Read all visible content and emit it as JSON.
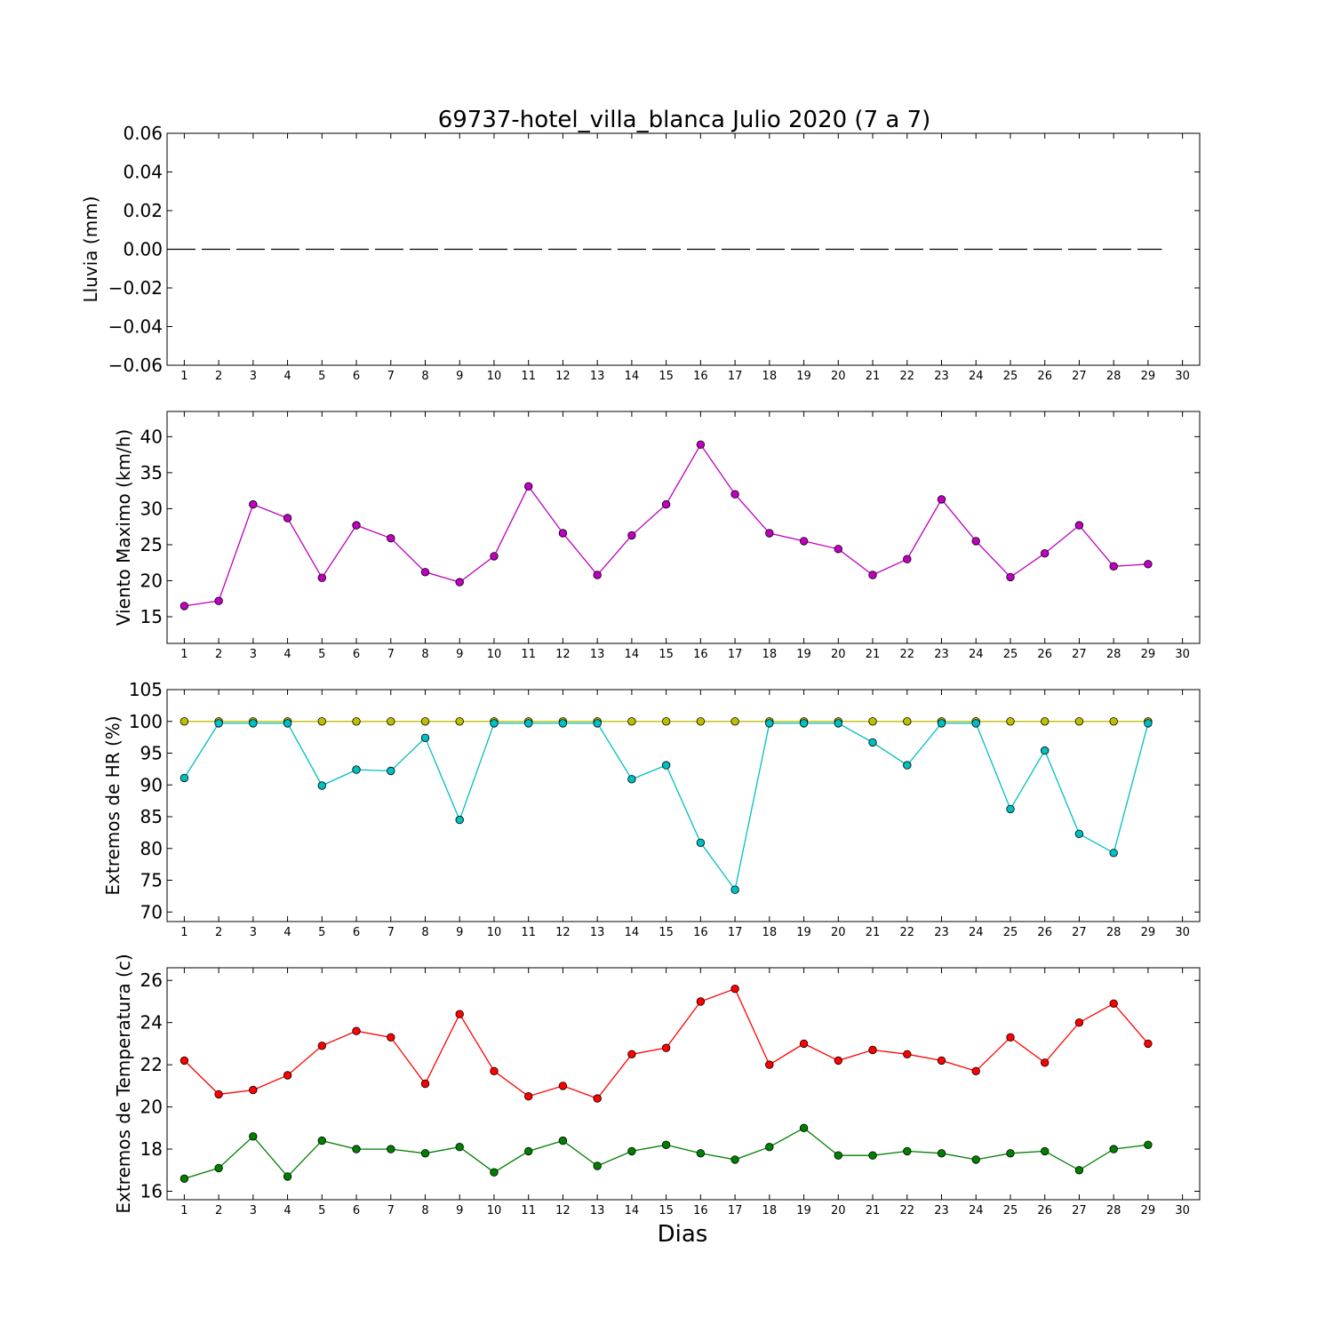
{
  "figure": {
    "title": "69737-hotel_villa_blanca Julio 2020  (7 a 7)",
    "xlabel": "Dias"
  },
  "chart_data": [
    {
      "type": "line",
      "ylabel": "Lluvia (mm)",
      "ylim": [
        -0.06,
        0.06
      ],
      "yticks": [
        -0.06,
        -0.04,
        -0.02,
        0.0,
        0.02,
        0.04,
        0.06
      ],
      "ytick_labels": [
        "−0.06",
        "−0.04",
        "−0.02",
        "0.00",
        "0.02",
        "0.04",
        "0.06"
      ],
      "xlim": [
        0.5,
        30.5
      ],
      "xticks": [
        1,
        2,
        3,
        4,
        5,
        6,
        7,
        8,
        9,
        10,
        11,
        12,
        13,
        14,
        15,
        16,
        17,
        18,
        19,
        20,
        21,
        22,
        23,
        24,
        25,
        26,
        27,
        28,
        29,
        30
      ],
      "grid": false,
      "series": [
        {
          "color": "#000000",
          "dashed": true,
          "markers": false,
          "x": [
            0.5,
            29.4
          ],
          "values": [
            0,
            0
          ]
        }
      ]
    },
    {
      "type": "line",
      "ylabel": "Viento Maximo (km/h)",
      "ylim": [
        11.3,
        43.5
      ],
      "yticks": [
        15,
        20,
        25,
        30,
        35,
        40
      ],
      "ytick_labels": [
        "15",
        "20",
        "25",
        "30",
        "35",
        "40"
      ],
      "xlim": [
        0.5,
        30.5
      ],
      "xticks": [
        1,
        2,
        3,
        4,
        5,
        6,
        7,
        8,
        9,
        10,
        11,
        12,
        13,
        14,
        15,
        16,
        17,
        18,
        19,
        20,
        21,
        22,
        23,
        24,
        25,
        26,
        27,
        28,
        29,
        30
      ],
      "grid": false,
      "series": [
        {
          "color": "#bf00bf",
          "markers": true,
          "x": [
            1,
            2,
            3,
            4,
            5,
            6,
            7,
            8,
            9,
            10,
            11,
            12,
            13,
            14,
            15,
            16,
            17,
            18,
            19,
            20,
            21,
            22,
            23,
            24,
            25,
            26,
            27,
            28,
            29
          ],
          "values": [
            16.5,
            17.2,
            30.6,
            28.7,
            20.4,
            27.7,
            25.9,
            21.2,
            19.8,
            23.4,
            33.1,
            26.6,
            20.8,
            26.3,
            30.6,
            38.9,
            32.0,
            26.6,
            25.5,
            24.4,
            20.8,
            23.0,
            31.3,
            25.5,
            20.5,
            23.8,
            27.7,
            22.0,
            22.3
          ]
        }
      ]
    },
    {
      "type": "line",
      "ylabel": "Extremos de HR (%)",
      "ylim": [
        68.5,
        105
      ],
      "yticks": [
        70,
        75,
        80,
        85,
        90,
        95,
        100,
        105
      ],
      "ytick_labels": [
        "70",
        "75",
        "80",
        "85",
        "90",
        "95",
        "100",
        "105"
      ],
      "xlim": [
        0.5,
        30.5
      ],
      "xticks": [
        1,
        2,
        3,
        4,
        5,
        6,
        7,
        8,
        9,
        10,
        11,
        12,
        13,
        14,
        15,
        16,
        17,
        18,
        19,
        20,
        21,
        22,
        23,
        24,
        25,
        26,
        27,
        28,
        29,
        30
      ],
      "grid": false,
      "series": [
        {
          "color": "#bfbf00",
          "markers": true,
          "x": [
            1,
            2,
            3,
            4,
            5,
            6,
            7,
            8,
            9,
            10,
            11,
            12,
            13,
            14,
            15,
            16,
            17,
            18,
            19,
            20,
            21,
            22,
            23,
            24,
            25,
            26,
            27,
            28,
            29
          ],
          "values": [
            100,
            100,
            100,
            100,
            100,
            100,
            100,
            100,
            100,
            100,
            100,
            100,
            100,
            100,
            100,
            100,
            100,
            100,
            100,
            100,
            100,
            100,
            100,
            100,
            100,
            100,
            100,
            100,
            100
          ]
        },
        {
          "color": "#00bfbf",
          "markers": true,
          "x": [
            1,
            2,
            3,
            4,
            5,
            6,
            7,
            8,
            9,
            10,
            11,
            12,
            13,
            14,
            15,
            16,
            17,
            18,
            19,
            20,
            21,
            22,
            23,
            24,
            25,
            26,
            27,
            28,
            29
          ],
          "values": [
            91.1,
            99.7,
            99.7,
            99.7,
            89.9,
            92.4,
            92.2,
            97.4,
            84.5,
            99.7,
            99.7,
            99.7,
            99.7,
            90.9,
            93.1,
            80.9,
            73.5,
            99.7,
            99.7,
            99.7,
            96.7,
            93.1,
            99.7,
            99.7,
            86.2,
            95.4,
            82.3,
            79.3,
            99.7
          ]
        }
      ]
    },
    {
      "type": "line",
      "ylabel": "Extremos de Temperatura (c)",
      "ylim": [
        15.6,
        26.6
      ],
      "yticks": [
        16,
        18,
        20,
        22,
        24,
        26
      ],
      "ytick_labels": [
        "16",
        "18",
        "20",
        "22",
        "24",
        "26"
      ],
      "xlim": [
        0.5,
        30.5
      ],
      "xticks": [
        1,
        2,
        3,
        4,
        5,
        6,
        7,
        8,
        9,
        10,
        11,
        12,
        13,
        14,
        15,
        16,
        17,
        18,
        19,
        20,
        21,
        22,
        23,
        24,
        25,
        26,
        27,
        28,
        29,
        30
      ],
      "grid": false,
      "series": [
        {
          "color": "#ff0000",
          "markers": true,
          "x": [
            1,
            2,
            3,
            4,
            5,
            6,
            7,
            8,
            9,
            10,
            11,
            12,
            13,
            14,
            15,
            16,
            17,
            18,
            19,
            20,
            21,
            22,
            23,
            24,
            25,
            26,
            27,
            28,
            29
          ],
          "values": [
            22.2,
            20.6,
            20.8,
            21.5,
            22.9,
            23.6,
            23.3,
            21.1,
            24.4,
            21.7,
            20.5,
            21.0,
            20.4,
            22.5,
            22.8,
            25.0,
            25.6,
            22.0,
            23.0,
            22.2,
            22.7,
            22.5,
            22.2,
            21.7,
            23.3,
            22.1,
            24.0,
            24.9,
            23.0
          ]
        },
        {
          "color": "#007f00",
          "markers": true,
          "x": [
            1,
            2,
            3,
            4,
            5,
            6,
            7,
            8,
            9,
            10,
            11,
            12,
            13,
            14,
            15,
            16,
            17,
            18,
            19,
            20,
            21,
            22,
            23,
            24,
            25,
            26,
            27,
            28,
            29
          ],
          "values": [
            16.6,
            17.1,
            18.6,
            16.7,
            18.4,
            18.0,
            18.0,
            17.8,
            18.1,
            16.9,
            17.9,
            18.4,
            17.2,
            17.9,
            18.2,
            17.8,
            17.5,
            18.1,
            19.0,
            17.7,
            17.7,
            17.9,
            17.8,
            17.5,
            17.8,
            17.9,
            17.0,
            18.0,
            18.2
          ]
        }
      ]
    }
  ]
}
